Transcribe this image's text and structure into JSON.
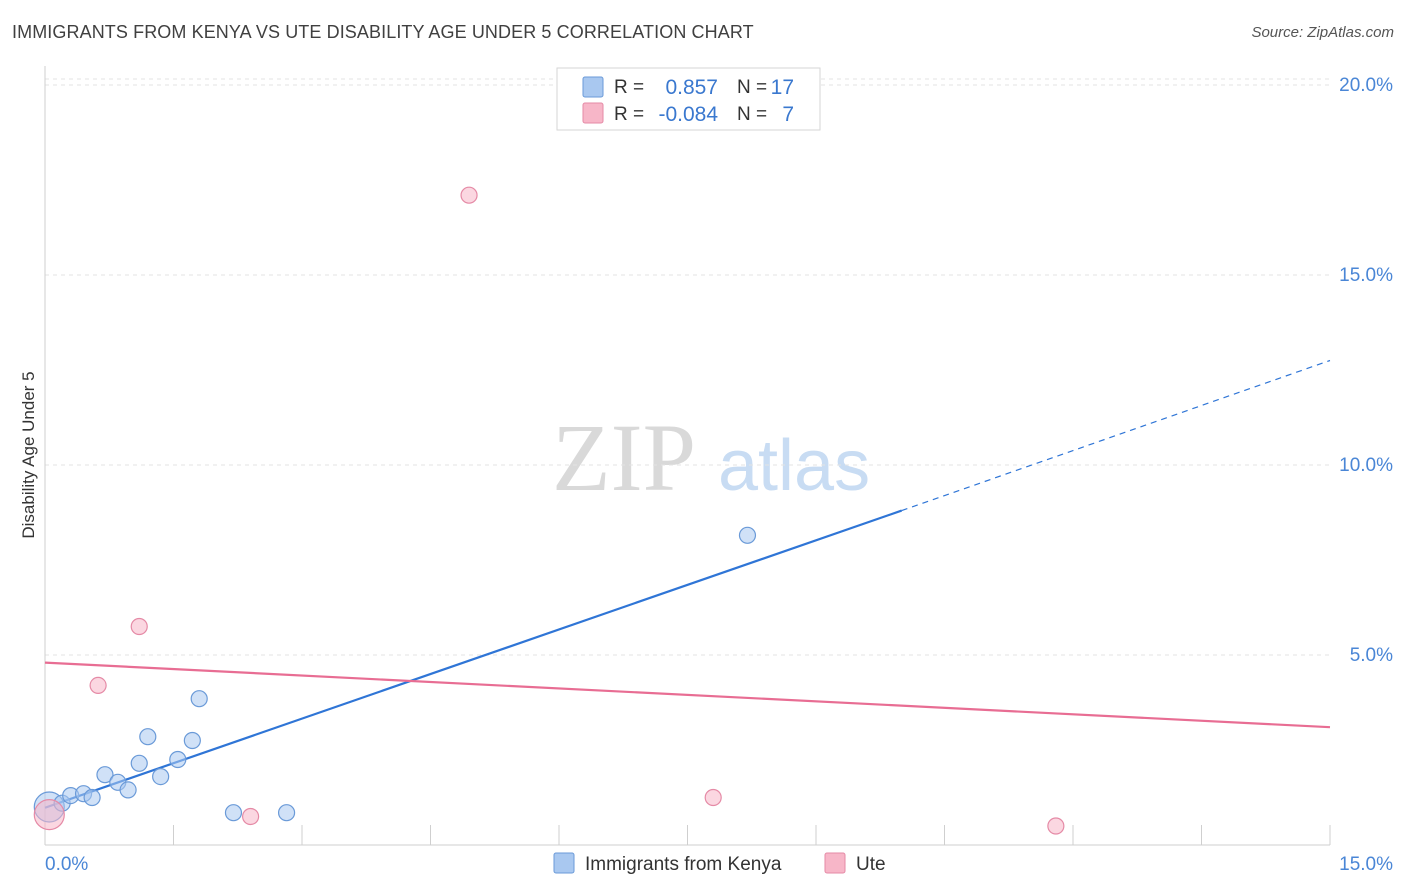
{
  "header": {
    "title": "IMMIGRANTS FROM KENYA VS UTE DISABILITY AGE UNDER 5 CORRELATION CHART",
    "source": "Source: ZipAtlas.com"
  },
  "watermark": {
    "zip": "ZIP",
    "atlas": "atlas"
  },
  "stats_legend": {
    "rows": [
      {
        "r_label": "R =",
        "r_value": "0.857",
        "n_label": "N =",
        "n_value": "17",
        "color": "#a9c8f0"
      },
      {
        "r_label": "R =",
        "r_value": "-0.084",
        "n_label": "N =",
        "n_value": "7",
        "color": "#f7b6c8"
      }
    ]
  },
  "chart_data": {
    "type": "scatter",
    "title": "IMMIGRANTS FROM KENYA VS UTE DISABILITY AGE UNDER 5 CORRELATION CHART",
    "xlabel": "",
    "ylabel": "Disability Age Under 5",
    "xlim": [
      0,
      15
    ],
    "ylim": [
      0,
      20.5
    ],
    "x_tick_labels": [
      "0.0%",
      "15.0%"
    ],
    "y_ticks": [
      5,
      10,
      15,
      20
    ],
    "y_tick_labels": [
      "5.0%",
      "10.0%",
      "15.0%",
      "20.0%"
    ],
    "grid": true,
    "series": [
      {
        "name": "Immigrants from Kenya",
        "color": "#a9c8f0",
        "stroke": "#6a9ad8",
        "line_color": "#2f75d6",
        "points": [
          {
            "x": 0.05,
            "y": 1.0,
            "big": true
          },
          {
            "x": 0.2,
            "y": 1.1
          },
          {
            "x": 0.3,
            "y": 1.3
          },
          {
            "x": 0.45,
            "y": 1.35
          },
          {
            "x": 0.55,
            "y": 1.25
          },
          {
            "x": 0.7,
            "y": 1.85
          },
          {
            "x": 0.85,
            "y": 1.65
          },
          {
            "x": 0.97,
            "y": 1.45
          },
          {
            "x": 1.1,
            "y": 2.15
          },
          {
            "x": 1.2,
            "y": 2.85
          },
          {
            "x": 1.35,
            "y": 1.8
          },
          {
            "x": 1.55,
            "y": 2.25
          },
          {
            "x": 1.72,
            "y": 2.75
          },
          {
            "x": 1.8,
            "y": 3.85
          },
          {
            "x": 2.2,
            "y": 0.85
          },
          {
            "x": 2.82,
            "y": 0.85
          },
          {
            "x": 8.2,
            "y": 8.15
          }
        ],
        "trend": {
          "x0": 0.0,
          "y0": 0.98,
          "x1": 10.0,
          "y1": 8.8,
          "dash_x1": 15.0,
          "dash_y1": 12.75
        }
      },
      {
        "name": "Ute",
        "color": "#f7b6c8",
        "stroke": "#e58aa6",
        "line_color": "#e86d93",
        "points": [
          {
            "x": 0.05,
            "y": 0.8,
            "big": true
          },
          {
            "x": 0.62,
            "y": 4.2
          },
          {
            "x": 1.1,
            "y": 5.75
          },
          {
            "x": 2.4,
            "y": 0.75
          },
          {
            "x": 4.95,
            "y": 17.1
          },
          {
            "x": 7.8,
            "y": 1.25
          },
          {
            "x": 11.8,
            "y": 0.5
          }
        ],
        "trend": {
          "x0": 0.0,
          "y0": 4.8,
          "x1": 15.0,
          "y1": 3.1
        }
      }
    ]
  },
  "bottom_legend": {
    "items": [
      {
        "label": "Immigrants from Kenya",
        "color": "#a9c8f0"
      },
      {
        "label": "Ute",
        "color": "#f7b6c8"
      }
    ]
  }
}
